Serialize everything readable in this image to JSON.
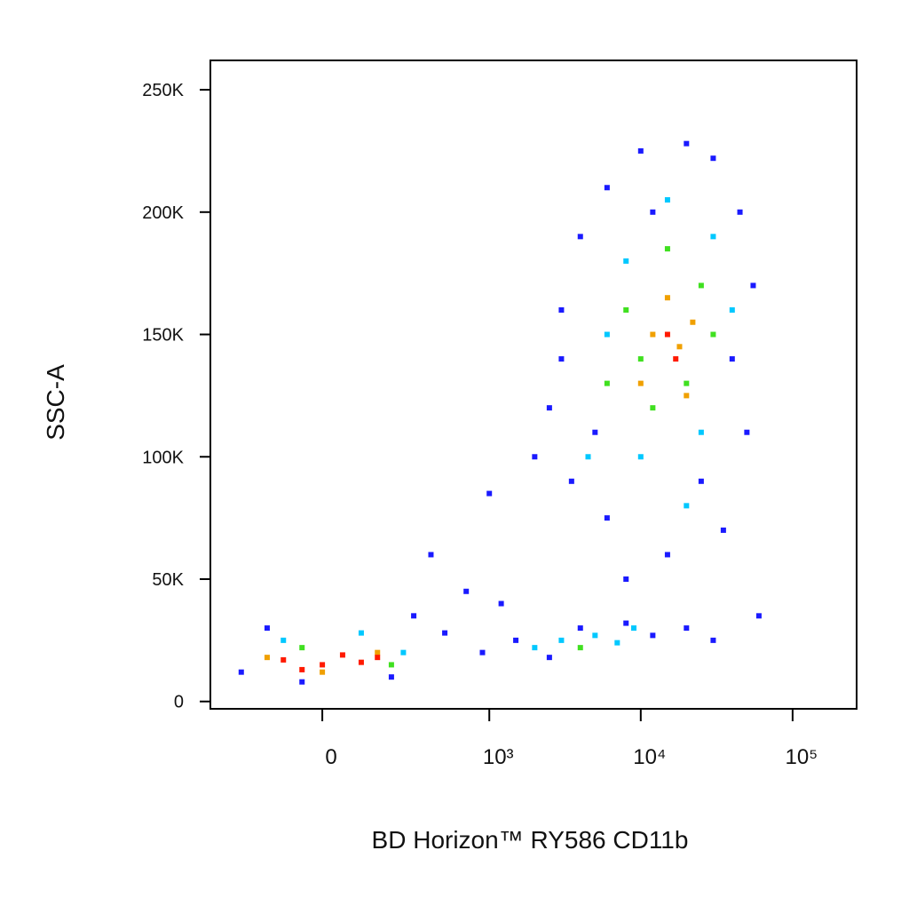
{
  "chart_data": {
    "type": "scatter",
    "x_label": "BD Horizon™ RY586 CD11b",
    "y_label": "SSC-A",
    "xscale": "arcsinh",
    "xlim": [
      -422,
      264000
    ],
    "ylim": [
      -3000,
      262000
    ],
    "xticks": [
      {
        "value": 0,
        "label": "0"
      },
      {
        "value": 1000,
        "label": "10³"
      },
      {
        "value": 10000,
        "label": "10⁴"
      },
      {
        "value": 100000,
        "label": "10⁵"
      }
    ],
    "yticks": [
      {
        "value": 0,
        "label": "0"
      },
      {
        "value": 50000,
        "label": "50K"
      },
      {
        "value": 100000,
        "label": "100K"
      },
      {
        "value": 150000,
        "label": "150K"
      },
      {
        "value": 200000,
        "label": "200K"
      },
      {
        "value": 250000,
        "label": "250K"
      }
    ],
    "series": [
      {
        "color": "#1a1aff",
        "x": [
          -250,
          -150,
          300,
          500,
          700,
          900,
          1200,
          1500,
          2500,
          4000,
          8000,
          12000,
          20000,
          30000,
          -50,
          200,
          400,
          1000,
          2500,
          2000,
          3000,
          4000,
          6000,
          10000,
          20000,
          30000,
          45000,
          55000,
          50000,
          35000,
          15000,
          6000,
          3500,
          8000,
          25000,
          3000,
          40000,
          12000,
          5000,
          60000
        ],
        "y": [
          12000,
          30000,
          35000,
          28000,
          45000,
          20000,
          40000,
          25000,
          18000,
          30000,
          32000,
          27000,
          30000,
          25000,
          8000,
          10000,
          60000,
          85000,
          120000,
          100000,
          160000,
          190000,
          210000,
          225000,
          228000,
          222000,
          200000,
          170000,
          110000,
          70000,
          60000,
          75000,
          90000,
          50000,
          90000,
          140000,
          140000,
          200000,
          110000,
          35000
        ]
      },
      {
        "color": "#00c8ff",
        "x": [
          -100,
          100,
          250,
          3000,
          5000,
          7000,
          9000,
          4500,
          20000,
          8000,
          30000,
          10000,
          40000,
          6000,
          25000,
          15000,
          2000
        ],
        "y": [
          25000,
          28000,
          20000,
          25000,
          27000,
          24000,
          30000,
          100000,
          80000,
          180000,
          190000,
          100000,
          160000,
          150000,
          110000,
          205000,
          22000
        ]
      },
      {
        "color": "#40e020",
        "x": [
          8000,
          12000,
          25000,
          20000,
          10000,
          15000,
          30000,
          6000,
          -50,
          200,
          4000
        ],
        "y": [
          160000,
          120000,
          170000,
          130000,
          140000,
          185000,
          150000,
          130000,
          22000,
          15000,
          22000
        ]
      },
      {
        "color": "#f0a000",
        "x": [
          12000,
          18000,
          15000,
          22000,
          10000,
          20000,
          -150,
          150,
          0
        ],
        "y": [
          150000,
          145000,
          165000,
          155000,
          130000,
          125000,
          18000,
          20000,
          12000
        ]
      },
      {
        "color": "#ff1a00",
        "x": [
          15000,
          17000,
          -100,
          0,
          50,
          100,
          -50,
          150
        ],
        "y": [
          150000,
          140000,
          17000,
          15000,
          19000,
          16000,
          13000,
          18000
        ]
      }
    ]
  }
}
